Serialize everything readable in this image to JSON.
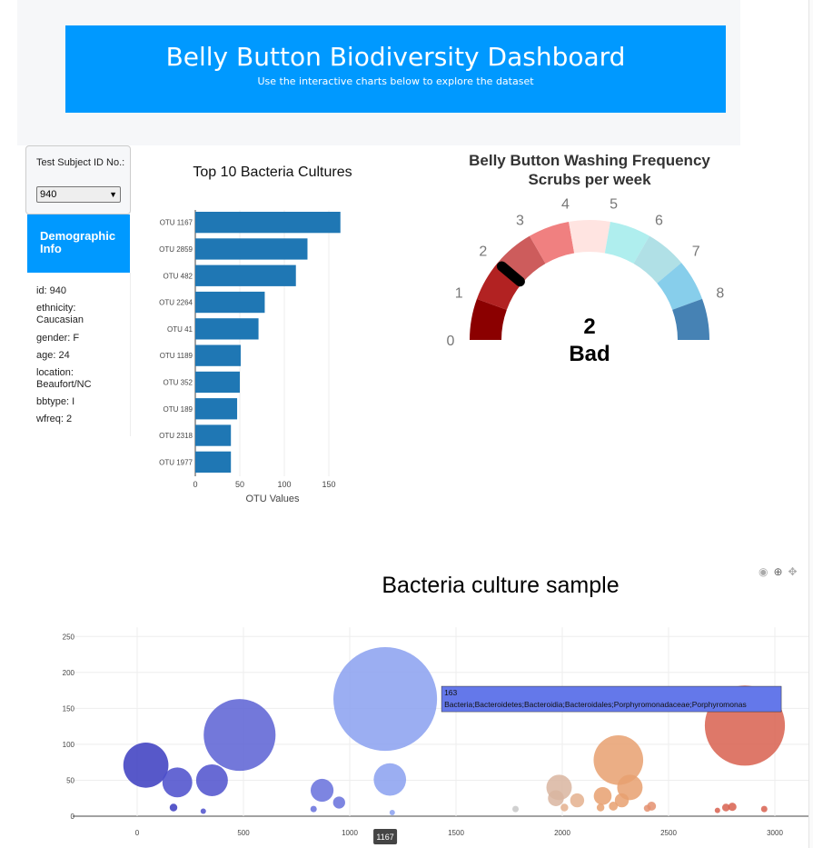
{
  "header": {
    "title": "Belly Button Biodiversity Dashboard",
    "subtitle": "Use the interactive charts below to explore the dataset"
  },
  "selector": {
    "label": "Test Subject ID No.:",
    "selected": "940"
  },
  "demographic": {
    "title": "Demographic Info",
    "lines": [
      "id: 940",
      "ethnicity: Caucasian",
      "gender: F",
      "age: 24",
      "location: Beaufort/NC",
      "bbtype: I",
      "wfreq: 2"
    ]
  },
  "modebar": {
    "icons": [
      "camera-icon",
      "zoom-icon",
      "pan-icon"
    ]
  },
  "chart_data": [
    {
      "type": "bar",
      "orientation": "horizontal",
      "title": "Top 10 Bacteria Cultures",
      "xlabel": "OTU Values",
      "categories": [
        "OTU 1167",
        "OTU 2859",
        "OTU 482",
        "OTU 2264",
        "OTU 41",
        "OTU 1189",
        "OTU 352",
        "OTU 189",
        "OTU 2318",
        "OTU 1977"
      ],
      "values": [
        163,
        126,
        113,
        78,
        71,
        51,
        50,
        47,
        40,
        40
      ],
      "xticks": [
        0,
        50,
        100,
        150
      ],
      "xlim": [
        0,
        170
      ],
      "color": "#1f77b4"
    },
    {
      "type": "gauge",
      "title": "Belly Button Washing Frequency",
      "subtitle": "Scrubs per week",
      "value": 2,
      "label": "Bad",
      "range": [
        0,
        9
      ],
      "ticks": [
        "0",
        "1",
        "2",
        "3",
        "4",
        "5",
        "6",
        "7",
        "8"
      ],
      "colors": [
        "#8b0000",
        "#b22222",
        "#cd5c5c",
        "#f08080",
        "#ffe4e1",
        "#afeeee",
        "#b0e0e6",
        "#87ceeb",
        "#4682b4"
      ]
    },
    {
      "type": "scatter",
      "title": "Bacteria culture sample",
      "xticks": [
        0,
        500,
        1000,
        1500,
        2000,
        2500,
        3000
      ],
      "yticks": [
        0,
        50,
        100,
        150,
        200,
        250
      ],
      "xlim": [
        -250,
        3200
      ],
      "ylim": [
        -5,
        265
      ],
      "points": [
        {
          "x": 41,
          "y": 71,
          "c": "#3a3bbf"
        },
        {
          "x": 189,
          "y": 47,
          "c": "#4a4ccb"
        },
        {
          "x": 352,
          "y": 50,
          "c": "#4d50cc"
        },
        {
          "x": 482,
          "y": 113,
          "c": "#5b60d4"
        },
        {
          "x": 171,
          "y": 12,
          "c": "#3a3bbf"
        },
        {
          "x": 311,
          "y": 7,
          "c": "#4d50cc"
        },
        {
          "x": 870,
          "y": 36,
          "c": "#6670dc"
        },
        {
          "x": 950,
          "y": 19,
          "c": "#6670dc"
        },
        {
          "x": 830,
          "y": 10,
          "c": "#6670dc"
        },
        {
          "x": 1167,
          "y": 163,
          "c": "#8aa0f0"
        },
        {
          "x": 1189,
          "y": 51,
          "c": "#8aa0f0"
        },
        {
          "x": 1200,
          "y": 5,
          "c": "#8aa0f0"
        },
        {
          "x": 1780,
          "y": 10,
          "c": "#c8c8c8"
        },
        {
          "x": 1985,
          "y": 40,
          "c": "#d9b5a0"
        },
        {
          "x": 1970,
          "y": 25,
          "c": "#d9b5a0"
        },
        {
          "x": 2070,
          "y": 22,
          "c": "#e4b08e"
        },
        {
          "x": 2010,
          "y": 12,
          "c": "#e4b08e"
        },
        {
          "x": 2264,
          "y": 78,
          "c": "#e8a070"
        },
        {
          "x": 2318,
          "y": 40,
          "c": "#e8a070"
        },
        {
          "x": 2190,
          "y": 28,
          "c": "#e8a070"
        },
        {
          "x": 2280,
          "y": 22,
          "c": "#e8a070"
        },
        {
          "x": 2240,
          "y": 14,
          "c": "#e8a070"
        },
        {
          "x": 2180,
          "y": 12,
          "c": "#e8a070"
        },
        {
          "x": 2420,
          "y": 14,
          "c": "#e49070"
        },
        {
          "x": 2400,
          "y": 11,
          "c": "#e49070"
        },
        {
          "x": 2859,
          "y": 126,
          "c": "#d8604f"
        },
        {
          "x": 2770,
          "y": 12,
          "c": "#d8604f"
        },
        {
          "x": 2800,
          "y": 13,
          "c": "#d8604f"
        },
        {
          "x": 2950,
          "y": 10,
          "c": "#d8604f"
        },
        {
          "x": 2730,
          "y": 8,
          "c": "#d8604f"
        }
      ],
      "hover": {
        "x": 1167,
        "value": "163",
        "text": "Bacteria;Bacteroidetes;Bacteroidia;Bacteroidales;Porphyromonadaceae;Porphyromonas",
        "xlabel": "1167"
      }
    }
  ]
}
